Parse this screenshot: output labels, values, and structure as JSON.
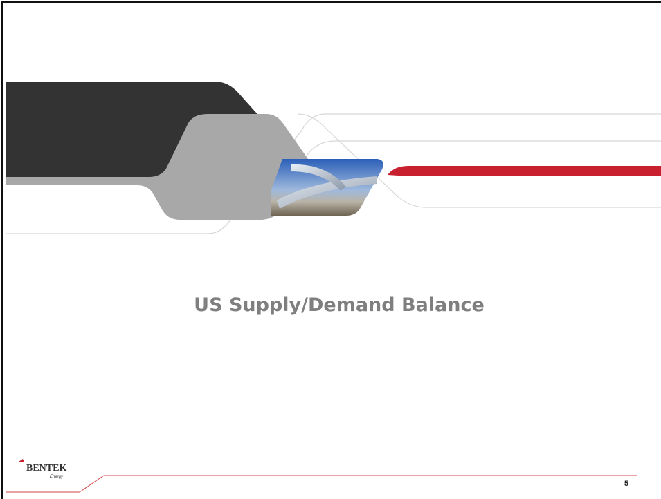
{
  "slide": {
    "title": "US Supply/Demand Balance",
    "logo": {
      "name": "BENTEK",
      "subtitle": "Energy"
    },
    "page_number": 5
  }
}
